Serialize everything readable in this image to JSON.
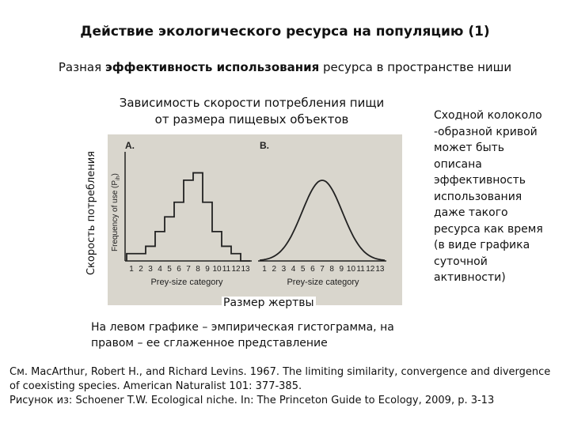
{
  "title": "Действие экологического ресурса на популяцию (1)",
  "subtitle": {
    "before": "Разная ",
    "emphasis": "эффективность использования",
    "after": " ресурса в пространстве ниши"
  },
  "chart_heading": {
    "line1": "Зависимость скорости потребления пищи",
    "line2": "от размера пищевых объектов"
  },
  "y_axis_outer_label": "Скорость потребления",
  "x_axis_outer_label": "Размер жертвы",
  "side_note": "Сходной колоколо\n-образной кривой\nможет быть\nописана\nэффективность\nиспользования\nдаже такого\nресурса как время\n(в виде графика\nсуточной\nактивности)",
  "caption": "На левом графике – эмпирическая гистограмма, на правом – ее сглаженное представление",
  "references": [
    "См. MacArthur, Robert H., and Richard Levins. 1967. The limiting similarity, convergence and divergence",
    "of coexisting species. American Naturalist 101: 377-385.",
    "Рисунок из: Schoener T.W. Ecological niche. In: The Princeton Guide to Ecology, 2009, p. 3-13"
  ],
  "colors": {
    "figure_background": "#d9d6cd",
    "ink": "#222222",
    "text": "#111111"
  },
  "chart_data": [
    {
      "type": "bar",
      "panel_label": "A.",
      "ylabel": "Frequency of use (P",
      "ylabel_sub": "ih",
      "xlabel": "Prey-size category",
      "categories": [
        "1",
        "2",
        "3",
        "4",
        "5",
        "6",
        "7",
        "8",
        "9",
        "10",
        "11",
        "12",
        "13"
      ],
      "values": [
        0.5,
        0.5,
        1,
        2,
        3,
        4,
        5.5,
        6,
        4,
        2,
        1,
        0.5,
        0
      ],
      "ylim": [
        0,
        7
      ]
    },
    {
      "type": "line",
      "panel_label": "B.",
      "xlabel": "Prey-size category",
      "categories": [
        "1",
        "2",
        "3",
        "4",
        "5",
        "6",
        "7",
        "8",
        "9",
        "10",
        "11",
        "12",
        "13"
      ],
      "curve": "bell",
      "peak_category": 7
    }
  ]
}
